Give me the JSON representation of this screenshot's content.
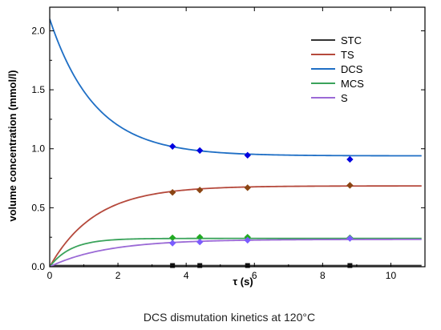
{
  "caption": "DCS dismutation kinetics at 120°C",
  "chart_data": {
    "type": "line",
    "xlabel": "τ (s)",
    "ylabel": "volume concentration (mmol/l)",
    "xlim": [
      0,
      11
    ],
    "ylim": [
      0,
      2.2
    ],
    "x_ticks": [
      0,
      2,
      4,
      6,
      8,
      10
    ],
    "y_ticks": [
      0.0,
      0.5,
      1.0,
      1.5,
      2.0
    ],
    "x_tick_labels": [
      "0",
      "2",
      "4",
      "6",
      "8",
      "10"
    ],
    "y_tick_labels": [
      "0.0",
      "0.5",
      "1.0",
      "1.5",
      "2.0"
    ],
    "grid": false,
    "legend_position": "top-right",
    "series": [
      {
        "name": "STC",
        "color": "#333333",
        "marker_color": "#111111",
        "marker": "square",
        "curve": {
          "type": "constant",
          "value": 0.01,
          "x_end": 10.9
        },
        "points": [
          {
            "x": 3.6,
            "y": 0.01
          },
          {
            "x": 4.4,
            "y": 0.01
          },
          {
            "x": 5.8,
            "y": 0.01
          },
          {
            "x": 8.8,
            "y": 0.01
          }
        ]
      },
      {
        "name": "TS",
        "color": "#b5493c",
        "marker_color": "#8b4513",
        "marker": "diamond",
        "curve": {
          "type": "rise",
          "asymptote": 0.685,
          "rate": 0.75,
          "x_end": 10.9
        },
        "points": [
          {
            "x": 3.6,
            "y": 0.63
          },
          {
            "x": 4.4,
            "y": 0.65
          },
          {
            "x": 5.8,
            "y": 0.67
          },
          {
            "x": 8.8,
            "y": 0.69
          }
        ]
      },
      {
        "name": "DCS",
        "color": "#1f6fc5",
        "marker_color": "#0000e0",
        "marker": "diamond",
        "curve": {
          "type": "decay",
          "start": 2.1,
          "asymptote": 0.94,
          "rate": 0.75,
          "x_end": 10.9
        },
        "points": [
          {
            "x": 3.6,
            "y": 1.02
          },
          {
            "x": 4.4,
            "y": 0.985
          },
          {
            "x": 5.8,
            "y": 0.945
          },
          {
            "x": 8.8,
            "y": 0.91
          }
        ]
      },
      {
        "name": "MCS",
        "color": "#3aa35b",
        "marker_color": "#22aa22",
        "marker": "diamond",
        "curve": {
          "type": "rise",
          "asymptote": 0.24,
          "rate": 1.6,
          "x_end": 10.9
        },
        "points": [
          {
            "x": 3.6,
            "y": 0.245
          },
          {
            "x": 4.4,
            "y": 0.25
          },
          {
            "x": 5.8,
            "y": 0.25
          },
          {
            "x": 8.8,
            "y": 0.245
          }
        ]
      },
      {
        "name": "S",
        "color": "#9b6ad6",
        "marker_color": "#7a5cff",
        "marker": "diamond",
        "curve": {
          "type": "rise",
          "asymptote": 0.232,
          "rate": 0.6,
          "x_end": 10.9
        },
        "points": [
          {
            "x": 3.6,
            "y": 0.2
          },
          {
            "x": 4.4,
            "y": 0.21
          },
          {
            "x": 5.8,
            "y": 0.225
          },
          {
            "x": 8.8,
            "y": 0.24
          }
        ]
      }
    ]
  }
}
